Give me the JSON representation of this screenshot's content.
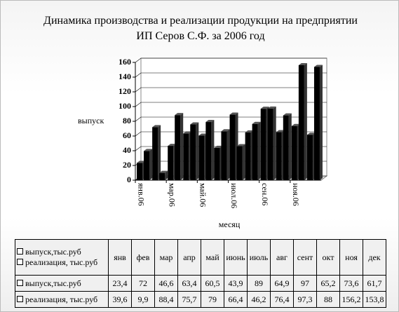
{
  "chart_data": {
    "type": "bar3d",
    "title": "Динамика производства и реализации продукции  на предприятии ИП Серов С.Ф. за 2006 год",
    "y_axis_title": "выпуск",
    "x_axis_title": "месяц",
    "x_labels": [
      "янв.06",
      null,
      "мар.06",
      null,
      "май.06",
      null,
      "июл.06",
      null,
      "сен.06",
      null,
      "ноя.06",
      null
    ],
    "categories": [
      "янв",
      "фев",
      "мар",
      "апр",
      "май",
      "июнь",
      "июль",
      "авг",
      "сент",
      "окт",
      "ноя",
      "дек"
    ],
    "series": [
      {
        "name": "выпуск,тыс.руб",
        "color": "#000000",
        "values": [
          23.4,
          72,
          46.6,
          63.4,
          60.5,
          43.9,
          89,
          64.9,
          97,
          65.2,
          73.6,
          61.7
        ],
        "value_labels": [
          "23,4",
          "72",
          "46,6",
          "63,4",
          "60,5",
          "43,9",
          "89",
          "64,9",
          "97",
          "65,2",
          "73,6",
          "61,7"
        ]
      },
      {
        "name": "реализация, тыс.руб",
        "color": "#000000",
        "values": [
          39.6,
          9.9,
          88.4,
          75.7,
          79,
          66.4,
          46.2,
          76.4,
          97.3,
          88,
          156.2,
          153.8
        ],
        "value_labels": [
          "39,6",
          "9,9",
          "88,4",
          "75,7",
          "79",
          "66,4",
          "46,2",
          "76,4",
          "97,3",
          "88",
          "156,2",
          "153,8"
        ]
      }
    ],
    "ylim": [
      0,
      160
    ],
    "yticks": [
      0,
      20,
      40,
      60,
      80,
      100,
      120,
      140,
      160
    ],
    "grid": true
  }
}
